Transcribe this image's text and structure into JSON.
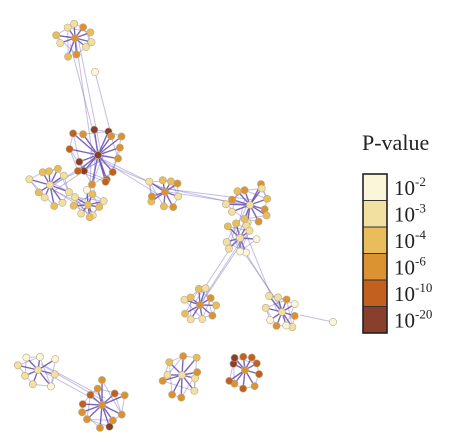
{
  "legend": {
    "title": "P-value",
    "entries": [
      {
        "base": "10",
        "exponent": "-2",
        "color": "#fbf6d9"
      },
      {
        "base": "10",
        "exponent": "-3",
        "color": "#f2e0a0"
      },
      {
        "base": "10",
        "exponent": "-4",
        "color": "#e8bd5a"
      },
      {
        "base": "10",
        "exponent": "-6",
        "color": "#db9332"
      },
      {
        "base": "10",
        "exponent": "-10",
        "color": "#c1601f"
      },
      {
        "base": "10",
        "exponent": "-20",
        "color": "#8a3e2c"
      }
    ]
  }
}
